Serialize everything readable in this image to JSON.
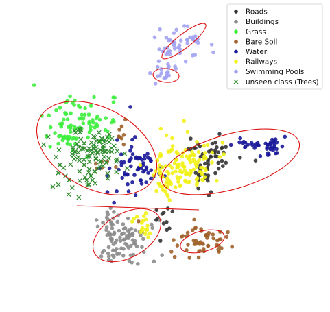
{
  "chart_data": {
    "type": "scatter",
    "title": "",
    "xlabel": "",
    "ylabel": "",
    "axes_visible": false,
    "grid": false,
    "legend_position": "top-right",
    "series": [
      {
        "name": "Roads",
        "color": "#333333",
        "marker": "circle",
        "clusters": [
          {
            "center": [
              318,
              228
            ],
            "spread": [
              14,
              16
            ],
            "count": 30
          },
          {
            "center": [
              296,
              258
            ],
            "spread": [
              10,
              12
            ],
            "count": 18
          },
          {
            "center": [
              286,
              215
            ],
            "spread": [
              10,
              8
            ],
            "count": 10
          },
          {
            "center": [
              238,
              318
            ],
            "spread": [
              8,
              10
            ],
            "count": 12
          }
        ]
      },
      {
        "name": "Buildings",
        "color": "#8c8c8c",
        "marker": "circle",
        "clusters": [
          {
            "center": [
              182,
              348
            ],
            "spread": [
              22,
              18
            ],
            "count": 70
          },
          {
            "center": [
              165,
              325
            ],
            "spread": [
              10,
              14
            ],
            "count": 18
          },
          {
            "center": [
              160,
              370
            ],
            "spread": [
              8,
              6
            ],
            "count": 12
          }
        ]
      },
      {
        "name": "Grass",
        "color": "#3dee3d",
        "marker": "circle",
        "clusters": [
          {
            "center": [
              120,
              180
            ],
            "spread": [
              26,
              16
            ],
            "count": 75
          },
          {
            "center": [
              95,
              200
            ],
            "spread": [
              8,
              8
            ],
            "count": 15
          }
        ]
      },
      {
        "name": "Bare Soil",
        "color": "#a0622a",
        "marker": "circle",
        "clusters": [
          {
            "center": [
              296,
              352
            ],
            "spread": [
              22,
              12
            ],
            "count": 55
          },
          {
            "center": [
              175,
              195
            ],
            "spread": [
              7,
              9
            ],
            "count": 8
          },
          {
            "center": [
              150,
              245
            ],
            "spread": [
              6,
              8
            ],
            "count": 6
          }
        ]
      },
      {
        "name": "Water",
        "color": "#1a1a9a",
        "marker": "circle",
        "clusters": [
          {
            "center": [
              398,
              212
            ],
            "spread": [
              10,
              7
            ],
            "count": 28
          },
          {
            "center": [
              370,
              210
            ],
            "spread": [
              14,
              3
            ],
            "count": 14
          },
          {
            "center": [
              352,
              206
            ],
            "spread": [
              4,
              3
            ],
            "count": 4
          },
          {
            "center": [
              195,
              245
            ],
            "spread": [
              22,
              22
            ],
            "count": 55
          },
          {
            "center": [
              215,
              240
            ],
            "spread": [
              8,
              8
            ],
            "count": 12
          }
        ]
      },
      {
        "name": "Railways",
        "color": "#f2f21a",
        "marker": "circle",
        "clusters": [
          {
            "center": [
              268,
              240
            ],
            "spread": [
              26,
              20
            ],
            "count": 110
          },
          {
            "center": [
              245,
              270
            ],
            "spread": [
              8,
              14
            ],
            "count": 25
          },
          {
            "center": [
              210,
              326
            ],
            "spread": [
              7,
              10
            ],
            "count": 18
          }
        ]
      },
      {
        "name": "Swimming Pools",
        "color": "#a3a3f2",
        "marker": "circle",
        "clusters": [
          {
            "center": [
              262,
              65
            ],
            "spread": [
              18,
              12
            ],
            "count": 45
          },
          {
            "center": [
              242,
              108
            ],
            "spread": [
              10,
              8
            ],
            "count": 20
          }
        ]
      },
      {
        "name": "unseen class (Trees)",
        "color": "#2e8b2e",
        "marker": "x",
        "clusters": [
          {
            "center": [
              122,
              235
            ],
            "spread": [
              24,
              22
            ],
            "count": 80
          },
          {
            "center": [
              140,
              210
            ],
            "spread": [
              14,
              10
            ],
            "count": 30
          }
        ]
      }
    ],
    "annotations": [
      {
        "type": "ellipse",
        "color": "#dd1111",
        "cx": 141,
        "cy": 216,
        "rx": 94,
        "ry": 59,
        "angle": 28
      },
      {
        "type": "ellipse",
        "color": "#dd1111",
        "cx": 336,
        "cy": 236,
        "rx": 104,
        "ry": 40,
        "angle": -16
      },
      {
        "type": "ellipse",
        "color": "#dd1111",
        "cx": 185,
        "cy": 343,
        "rx": 54,
        "ry": 32,
        "angle": -30
      },
      {
        "type": "ellipse",
        "color": "#dd1111",
        "cx": 295,
        "cy": 352,
        "rx": 33,
        "ry": 15,
        "angle": -15
      },
      {
        "type": "ellipse",
        "color": "#dd1111",
        "cx": 268,
        "cy": 60,
        "rx": 40,
        "ry": 10,
        "angle": -38
      },
      {
        "type": "ellipse",
        "color": "#dd1111",
        "cx": 242,
        "cy": 110,
        "rx": 19,
        "ry": 10,
        "angle": 5
      },
      {
        "type": "line",
        "color": "#dd1111",
        "x1": 112,
        "y1": 300,
        "x2": 290,
        "y2": 306
      }
    ]
  }
}
